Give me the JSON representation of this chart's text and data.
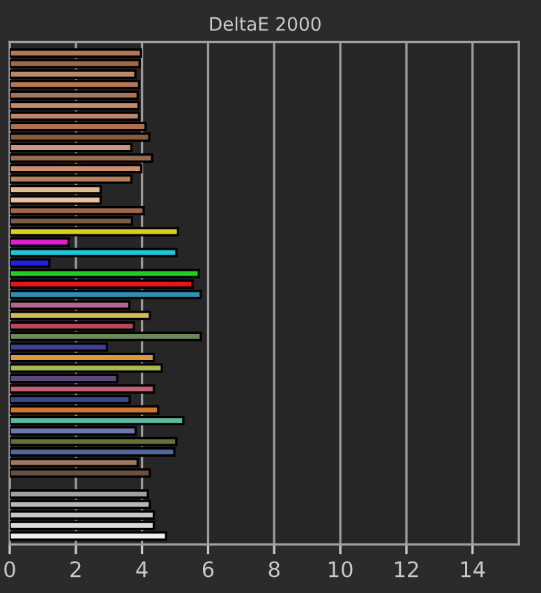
{
  "chart_data": {
    "type": "bar",
    "title": "DeltaE 2000",
    "orientation": "horizontal",
    "categories": [
      null,
      null,
      null,
      null,
      null,
      null,
      null,
      null,
      null,
      null,
      null,
      null,
      null,
      null,
      null,
      null,
      null,
      null,
      null,
      null,
      null,
      null,
      null,
      null,
      null,
      null,
      null,
      null,
      null,
      null,
      null,
      null,
      null,
      null,
      null,
      null,
      null,
      null,
      null,
      null,
      null,
      null,
      null,
      null,
      null,
      null,
      null
    ],
    "values": [
      3.97,
      3.93,
      3.8,
      3.91,
      3.87,
      3.9,
      3.91,
      4.11,
      4.22,
      3.68,
      4.31,
      3.98,
      3.68,
      2.75,
      2.75,
      4.05,
      3.7,
      5.09,
      1.78,
      5.04,
      1.2,
      5.72,
      5.53,
      5.78,
      3.62,
      4.24,
      3.76,
      5.78,
      2.94,
      4.36,
      4.6,
      3.25,
      4.36,
      3.63,
      4.49,
      5.25,
      3.81,
      5.04,
      4.98,
      3.87,
      4.24,
      null,
      4.18,
      4.24,
      4.36,
      4.36,
      4.73
    ],
    "colors": [
      "#b07a5a",
      "#9a6a4a",
      "#c08a6a",
      "#b07a5a",
      "#a87458",
      "#c88a68",
      "#c0866a",
      "#b07050",
      "#8a5a3a",
      "#c89878",
      "#9a6a50",
      "#c89070",
      "#b8805c",
      "#e0b898",
      "#e8c0a0",
      "#a06848",
      "#7a5a48",
      "#d8d020",
      "#e020d0",
      "#20c8d0",
      "#2020e0",
      "#20d020",
      "#e01818",
      "#3090b0",
      "#b06890",
      "#d8b850",
      "#b84858",
      "#6a8a58",
      "#404090",
      "#d89840",
      "#a8b850",
      "#604878",
      "#c06070",
      "#384888",
      "#d07830",
      "#60b8a0",
      "#7078a8",
      "#607040",
      "#506898",
      "#a07860",
      "#6a5040",
      "#000000",
      "#a0a0a0",
      "#b8b8b8",
      "#c8c8c8",
      "#dcdcdc",
      "#f0f0f0"
    ],
    "xlim": [
      0,
      15.4
    ],
    "xticks": [
      0,
      2,
      4,
      6,
      8,
      10,
      12,
      14
    ],
    "grid": "x"
  }
}
